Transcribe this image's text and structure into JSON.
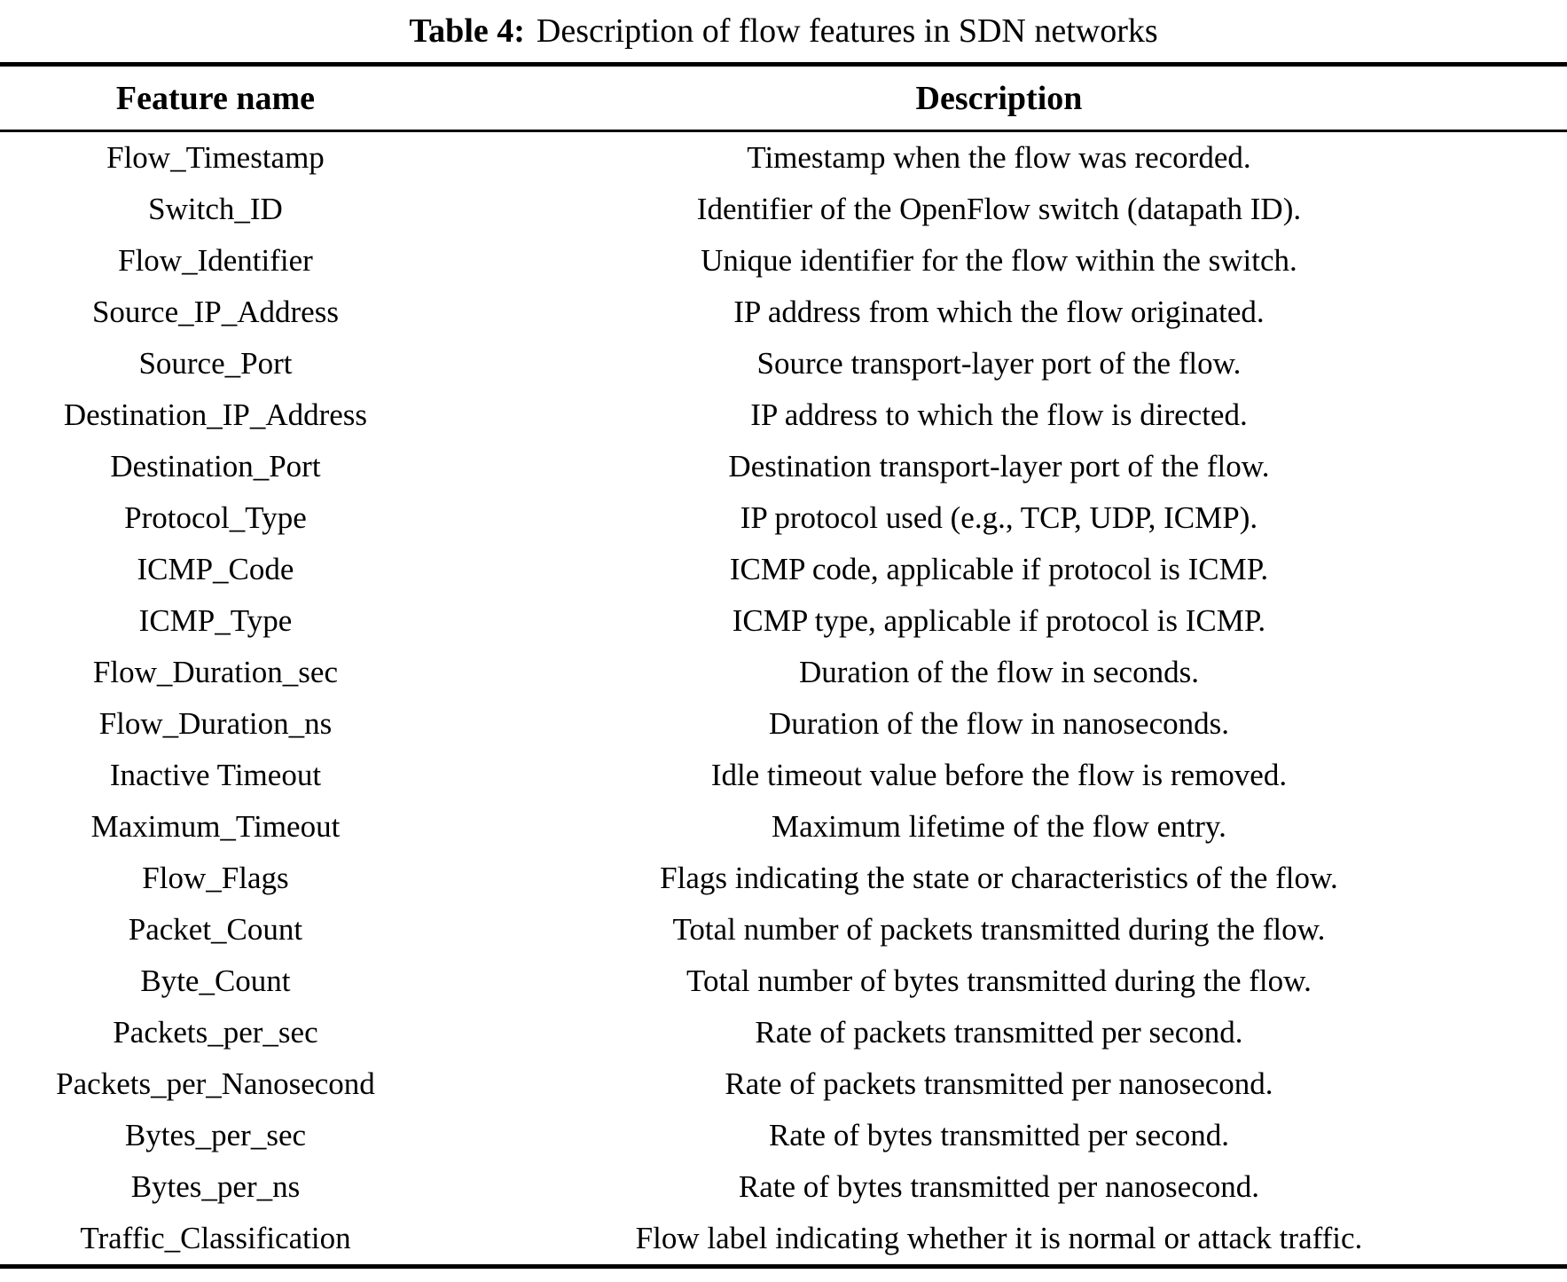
{
  "title": {
    "label": "Table 4:",
    "text": "Description of flow features in SDN networks"
  },
  "colors": {
    "text": "#000000",
    "background": "#ffffff",
    "rule": "#000000"
  },
  "table": {
    "headers": {
      "feature": "Feature name",
      "description": "Description"
    },
    "rows": [
      {
        "feature": "Flow_Timestamp",
        "description": "Timestamp when the flow was recorded."
      },
      {
        "feature": "Switch_ID",
        "description": "Identifier of the OpenFlow switch (datapath ID)."
      },
      {
        "feature": "Flow_Identifier",
        "description": "Unique identifier for the flow within the switch."
      },
      {
        "feature": "Source_IP_Address",
        "description": "IP address from which the flow originated."
      },
      {
        "feature": "Source_Port",
        "description": "Source transport-layer port of the flow."
      },
      {
        "feature": "Destination_IP_Address",
        "description": "IP address to which the flow is directed."
      },
      {
        "feature": "Destination_Port",
        "description": "Destination transport-layer port of the flow."
      },
      {
        "feature": "Protocol_Type",
        "description": "IP protocol used (e.g., TCP, UDP, ICMP)."
      },
      {
        "feature": "ICMP_Code",
        "description": "ICMP code, applicable if protocol is ICMP."
      },
      {
        "feature": "ICMP_Type",
        "description": "ICMP type, applicable if protocol is ICMP."
      },
      {
        "feature": "Flow_Duration_sec",
        "description": "Duration of the flow in seconds."
      },
      {
        "feature": "Flow_Duration_ns",
        "description": "Duration of the flow in nanoseconds."
      },
      {
        "feature": "Inactive Timeout",
        "description": "Idle timeout value before the flow is removed."
      },
      {
        "feature": "Maximum_Timeout",
        "description": "Maximum lifetime of the flow entry."
      },
      {
        "feature": "Flow_Flags",
        "description": "Flags indicating the state or characteristics of the flow."
      },
      {
        "feature": "Packet_Count",
        "description": "Total number of packets transmitted during the flow."
      },
      {
        "feature": "Byte_Count",
        "description": "Total number of bytes transmitted during the flow."
      },
      {
        "feature": "Packets_per_sec",
        "description": "Rate of packets transmitted per second."
      },
      {
        "feature": "Packets_per_Nanosecond",
        "description": "Rate of packets transmitted per nanosecond."
      },
      {
        "feature": "Bytes_per_sec",
        "description": "Rate of bytes transmitted per second."
      },
      {
        "feature": "Bytes_per_ns",
        "description": "Rate of bytes transmitted per nanosecond."
      },
      {
        "feature": "Traffic_Classification",
        "description": "Flow label indicating whether it is normal or attack traffic."
      }
    ]
  }
}
